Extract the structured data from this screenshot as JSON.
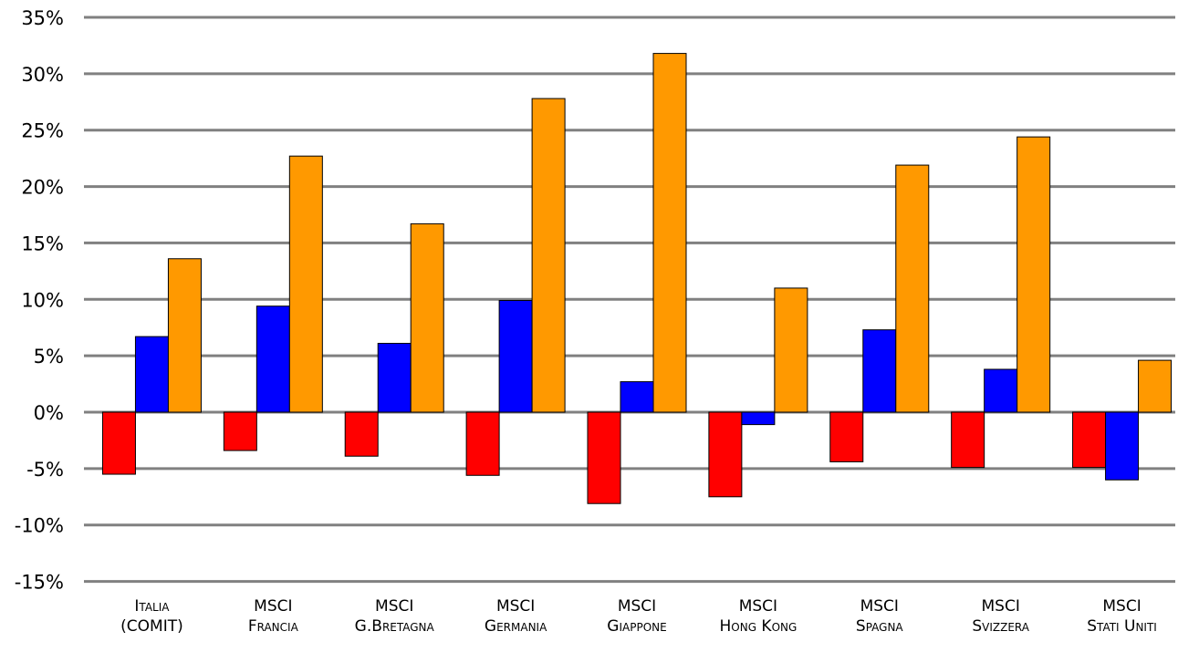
{
  "chart_data": {
    "type": "bar",
    "categories": [
      [
        "Italia",
        "(COMIT)"
      ],
      [
        "MSCI",
        "Francia"
      ],
      [
        "MSCI",
        "G.Bretagna"
      ],
      [
        "MSCI",
        "Germania"
      ],
      [
        "MSCI",
        "Giappone"
      ],
      [
        "MSCI",
        "Hong Kong"
      ],
      [
        "MSCI",
        "Spagna"
      ],
      [
        "MSCI",
        "Svizzera"
      ],
      [
        "MSCI",
        "Stati Uniti"
      ]
    ],
    "series": [
      {
        "color": "#ff0000",
        "values": [
          -5.5,
          -3.4,
          -3.9,
          -5.6,
          -8.1,
          -7.5,
          -4.4,
          -4.9,
          -4.9
        ]
      },
      {
        "color": "#0000ff",
        "values": [
          6.7,
          9.4,
          6.1,
          9.9,
          2.7,
          -1.1,
          7.3,
          3.8,
          -6.0
        ]
      },
      {
        "color": "#ff9900",
        "values": [
          13.6,
          22.7,
          16.7,
          27.8,
          31.8,
          11.0,
          21.9,
          24.4,
          4.6
        ]
      }
    ],
    "y_ticks": [
      "35%",
      "30%",
      "25%",
      "20%",
      "15%",
      "10%",
      "5%",
      "0%",
      "-5%",
      "-10%",
      "-15%"
    ],
    "ylim": [
      -15,
      35
    ],
    "grid": true,
    "legend": "none"
  }
}
